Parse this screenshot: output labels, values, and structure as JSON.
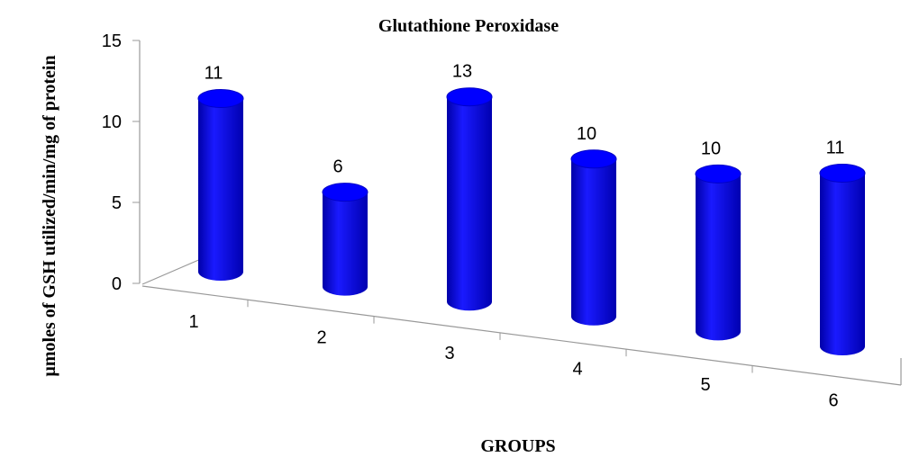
{
  "chart_data": {
    "type": "bar3d",
    "title": "Glutathione Peroxidase",
    "xlabel": "GROUPS",
    "ylabel": "µmoles of GSH utilized/min/mg of protein",
    "categories": [
      "1",
      "2",
      "3",
      "4",
      "5",
      "6"
    ],
    "values": [
      11,
      6,
      13,
      10,
      10,
      11
    ],
    "color": "#0000ff",
    "ylim": [
      0,
      15
    ],
    "yticks": [
      0,
      5,
      10,
      15
    ]
  }
}
